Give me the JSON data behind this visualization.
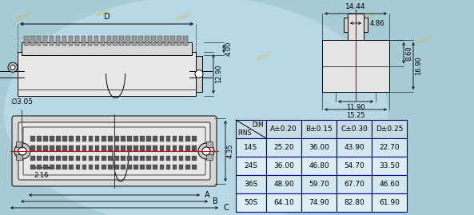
{
  "bg_color": "#a8ccd6",
  "ellipse_color": "#b5d5e0",
  "line_color": "#000000",
  "red_line": "#cc0000",
  "table_bg_header": "#c0d8e4",
  "table_bg_row": "#d0e4ee",
  "table_border": "#000080",
  "watermark_color": "#d4a830",
  "table_rows": [
    [
      "14S",
      "25.20",
      "36.00",
      "43.90",
      "22.70"
    ],
    [
      "24S",
      "36.00",
      "46.80",
      "54.70",
      "33.50"
    ],
    [
      "36S",
      "48.90",
      "59.70",
      "67.70",
      "46.60"
    ],
    [
      "50S",
      "64.10",
      "74.90",
      "82.80",
      "61.90"
    ]
  ],
  "col_headers": [
    "A±0.20",
    "B±0.15",
    "C±0.30",
    "D±0.25"
  ]
}
